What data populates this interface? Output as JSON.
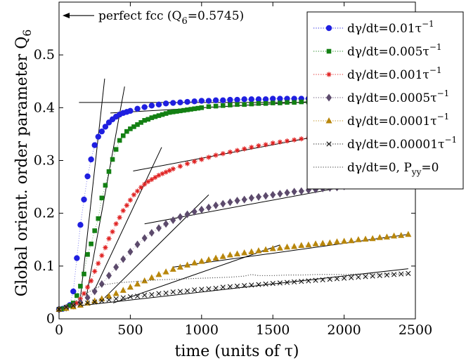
{
  "chart_data": {
    "type": "scatter",
    "xlabel": "time (units of τ)",
    "ylabel": "Global orient. order parameter Q",
    "ylabel_sub": "6",
    "xlim": [
      0,
      2500
    ],
    "ylim": [
      0,
      0.6
    ],
    "xticks": [
      0,
      500,
      1000,
      1500,
      2000,
      2500
    ],
    "yticks": [
      0,
      0.1,
      0.2,
      0.3,
      0.4,
      0.5
    ],
    "ytick_labels": [
      "0",
      "0.1",
      "0.2",
      "0.3",
      "0.4",
      "0.5"
    ],
    "grid": false,
    "legend_position": "top-right",
    "annotation": {
      "text": "perfect fcc (Q",
      "sub": "6",
      "suffix": "=0.5745)",
      "y": 0.5745
    },
    "series": [
      {
        "label_main": "dγ/dt=0.01τ",
        "label_sup": "−1",
        "label_sub": "",
        "color": "#1f1fe0",
        "marker": "circle",
        "x": [
          0,
          25,
          50,
          75,
          100,
          125,
          150,
          175,
          200,
          225,
          250,
          275,
          300,
          325,
          350,
          375,
          400,
          425,
          450,
          475,
          500,
          550,
          600,
          650,
          700,
          750,
          800,
          850,
          900,
          950,
          1000,
          1050,
          1100,
          1150,
          1200,
          1250,
          1300,
          1350,
          1400,
          1450,
          1500,
          1550,
          1600,
          1650,
          1700,
          1750,
          1800,
          1850,
          1900,
          1950,
          2000,
          2050,
          2100
        ],
        "y": [
          0.018,
          0.019,
          0.021,
          0.026,
          0.052,
          0.115,
          0.178,
          0.226,
          0.27,
          0.302,
          0.329,
          0.345,
          0.355,
          0.364,
          0.372,
          0.378,
          0.383,
          0.387,
          0.39,
          0.392,
          0.394,
          0.398,
          0.401,
          0.404,
          0.406,
          0.408,
          0.409,
          0.41,
          0.411,
          0.412,
          0.413,
          0.413,
          0.414,
          0.414,
          0.415,
          0.415,
          0.416,
          0.416,
          0.416,
          0.416,
          0.417,
          0.417,
          0.417,
          0.417,
          0.417,
          0.417,
          0.417,
          0.417,
          0.418,
          0.418,
          0.418,
          0.418,
          0.418
        ]
      },
      {
        "label_main": "dγ/dt=0.005τ",
        "label_sup": "−1",
        "label_sub": "",
        "color": "#138013",
        "marker": "square",
        "x": [
          0,
          25,
          50,
          75,
          100,
          125,
          150,
          175,
          200,
          225,
          250,
          275,
          300,
          325,
          350,
          375,
          400,
          425,
          450,
          475,
          500,
          525,
          550,
          575,
          600,
          625,
          650,
          675,
          700,
          725,
          750,
          775,
          800,
          825,
          850,
          875,
          900,
          925,
          950,
          975,
          1000,
          1050,
          1100,
          1150,
          1200,
          1250,
          1300,
          1350,
          1400,
          1450,
          1500,
          1550,
          1600,
          1650,
          1700,
          1750,
          1800,
          1850,
          1900
        ],
        "y": [
          0.018,
          0.019,
          0.021,
          0.025,
          0.03,
          0.044,
          0.062,
          0.085,
          0.122,
          0.142,
          0.167,
          0.19,
          0.229,
          0.253,
          0.279,
          0.302,
          0.321,
          0.338,
          0.347,
          0.355,
          0.36,
          0.364,
          0.368,
          0.372,
          0.376,
          0.378,
          0.381,
          0.383,
          0.385,
          0.387,
          0.389,
          0.391,
          0.392,
          0.393,
          0.394,
          0.395,
          0.396,
          0.397,
          0.398,
          0.399,
          0.4,
          0.402,
          0.403,
          0.404,
          0.405,
          0.406,
          0.406,
          0.407,
          0.408,
          0.408,
          0.409,
          0.409,
          0.41,
          0.41,
          0.411,
          0.411,
          0.412,
          0.412,
          0.413
        ]
      },
      {
        "label_main": "dγ/dt=0.001τ",
        "label_sup": "−1",
        "label_sub": "",
        "color": "#e02020",
        "marker": "star",
        "x": [
          0,
          50,
          100,
          125,
          150,
          175,
          200,
          225,
          250,
          275,
          300,
          325,
          350,
          375,
          400,
          425,
          450,
          475,
          500,
          525,
          550,
          575,
          600,
          625,
          650,
          675,
          700,
          725,
          750,
          775,
          800,
          850,
          900,
          950,
          1000,
          1050,
          1100,
          1150,
          1200,
          1250,
          1300,
          1350,
          1400,
          1450,
          1500,
          1550,
          1600,
          1650,
          1700,
          1750,
          1800,
          1850,
          1900
        ],
        "y": [
          0.018,
          0.02,
          0.024,
          0.03,
          0.038,
          0.048,
          0.06,
          0.072,
          0.09,
          0.105,
          0.12,
          0.135,
          0.152,
          0.165,
          0.18,
          0.192,
          0.205,
          0.215,
          0.225,
          0.235,
          0.242,
          0.249,
          0.255,
          0.26,
          0.264,
          0.268,
          0.272,
          0.275,
          0.278,
          0.281,
          0.284,
          0.289,
          0.294,
          0.298,
          0.302,
          0.306,
          0.31,
          0.313,
          0.316,
          0.319,
          0.322,
          0.325,
          0.328,
          0.33,
          0.333,
          0.335,
          0.337,
          0.339,
          0.341,
          0.343,
          0.345,
          0.347,
          0.349
        ]
      },
      {
        "label_main": "dγ/dt=0.0005τ",
        "label_sup": "−1",
        "label_sub": "",
        "color": "#5c4a6c",
        "marker": "diamond",
        "x": [
          0,
          50,
          100,
          150,
          200,
          250,
          300,
          350,
          400,
          450,
          500,
          550,
          600,
          650,
          700,
          750,
          800,
          850,
          900,
          950,
          1000,
          1050,
          1100,
          1150,
          1200,
          1250,
          1300,
          1350,
          1400,
          1450,
          1500,
          1550,
          1600,
          1650,
          1700,
          1750,
          1800,
          1850,
          1900,
          1950,
          2000
        ],
        "y": [
          0.018,
          0.021,
          0.025,
          0.031,
          0.04,
          0.052,
          0.066,
          0.082,
          0.098,
          0.113,
          0.127,
          0.141,
          0.153,
          0.163,
          0.172,
          0.18,
          0.187,
          0.193,
          0.198,
          0.203,
          0.207,
          0.211,
          0.215,
          0.218,
          0.221,
          0.224,
          0.226,
          0.229,
          0.231,
          0.233,
          0.235,
          0.237,
          0.239,
          0.241,
          0.242,
          0.244,
          0.245,
          0.247,
          0.248,
          0.249,
          0.251
        ]
      },
      {
        "label_main": "dγ/dt=0.0001τ",
        "label_sup": "−1",
        "label_sub": "",
        "color": "#b8860b",
        "marker": "triangle",
        "x": [
          0,
          50,
          100,
          150,
          200,
          250,
          300,
          350,
          400,
          450,
          500,
          550,
          600,
          650,
          700,
          750,
          800,
          850,
          900,
          950,
          1000,
          1050,
          1100,
          1150,
          1200,
          1250,
          1300,
          1350,
          1400,
          1450,
          1500,
          1550,
          1600,
          1650,
          1700,
          1750,
          1800,
          1850,
          1900,
          1950,
          2000,
          2050,
          2100,
          2150,
          2200,
          2250,
          2300,
          2350,
          2400,
          2450
        ],
        "y": [
          0.018,
          0.02,
          0.023,
          0.026,
          0.03,
          0.034,
          0.038,
          0.043,
          0.048,
          0.054,
          0.06,
          0.066,
          0.072,
          0.078,
          0.084,
          0.089,
          0.094,
          0.098,
          0.102,
          0.106,
          0.109,
          0.112,
          0.115,
          0.118,
          0.121,
          0.123,
          0.125,
          0.127,
          0.129,
          0.131,
          0.133,
          0.134,
          0.136,
          0.137,
          0.139,
          0.14,
          0.142,
          0.143,
          0.144,
          0.146,
          0.147,
          0.148,
          0.15,
          0.151,
          0.152,
          0.154,
          0.155,
          0.157,
          0.158,
          0.16
        ]
      },
      {
        "label_main": "dγ/dt=0.00001τ",
        "label_sup": "−1",
        "label_sub": "",
        "color": "#111111",
        "marker": "x",
        "x": [
          0,
          50,
          100,
          150,
          200,
          250,
          300,
          350,
          400,
          450,
          500,
          550,
          600,
          650,
          700,
          750,
          800,
          850,
          900,
          950,
          1000,
          1050,
          1100,
          1150,
          1200,
          1250,
          1300,
          1350,
          1400,
          1450,
          1500,
          1550,
          1600,
          1650,
          1700,
          1750,
          1800,
          1850,
          1900,
          1950,
          2000,
          2050,
          2100,
          2150,
          2200,
          2250,
          2300,
          2350,
          2400,
          2450
        ],
        "y": [
          0.018,
          0.022,
          0.025,
          0.028,
          0.03,
          0.032,
          0.034,
          0.036,
          0.038,
          0.04,
          0.042,
          0.043,
          0.045,
          0.046,
          0.048,
          0.049,
          0.051,
          0.052,
          0.053,
          0.055,
          0.056,
          0.057,
          0.058,
          0.06,
          0.061,
          0.062,
          0.063,
          0.064,
          0.065,
          0.066,
          0.067,
          0.068,
          0.069,
          0.07,
          0.071,
          0.072,
          0.073,
          0.074,
          0.075,
          0.076,
          0.077,
          0.078,
          0.079,
          0.08,
          0.081,
          0.082,
          0.083,
          0.084,
          0.085,
          0.086
        ]
      },
      {
        "label_main": "dγ/dt=0, P",
        "label_sup": "",
        "label_sub": "yy",
        "label_suffix": "=0",
        "color": "#111111",
        "marker": "dotted-line",
        "x": [
          0,
          100,
          200,
          300,
          400,
          500,
          600,
          700,
          800,
          900,
          1000,
          1100,
          1200,
          1300,
          1350,
          1400,
          1500,
          1600,
          1700,
          1800,
          1900,
          2000,
          2100,
          2200,
          2300,
          2400,
          2450
        ],
        "y": [
          0.018,
          0.03,
          0.05,
          0.064,
          0.068,
          0.07,
          0.072,
          0.074,
          0.075,
          0.076,
          0.077,
          0.078,
          0.079,
          0.081,
          0.084,
          0.082,
          0.082,
          0.083,
          0.083,
          0.084,
          0.084,
          0.084,
          0.085,
          0.085,
          0.085,
          0.085,
          0.085
        ]
      }
    ],
    "fit_lines": [
      {
        "x": [
          150,
          320
        ],
        "y": [
          0.04,
          0.455
        ]
      },
      {
        "x": [
          190,
          460
        ],
        "y": [
          0.04,
          0.44
        ]
      },
      {
        "x": [
          240,
          720
        ],
        "y": [
          0.05,
          0.325
        ]
      },
      {
        "x": [
          320,
          1050
        ],
        "y": [
          0.04,
          0.235
        ]
      },
      {
        "x": [
          380,
          1550
        ],
        "y": [
          0.03,
          0.14
        ]
      },
      {
        "x": [
          150,
          2450
        ],
        "y": [
          0.025,
          0.095
        ]
      },
      {
        "x": [
          140,
          1900
        ],
        "y": [
          0.41,
          0.41
        ]
      },
      {
        "x": [
          360,
          2000
        ],
        "y": [
          0.39,
          0.415
        ]
      },
      {
        "x": [
          520,
          1900
        ],
        "y": [
          0.28,
          0.35
        ]
      },
      {
        "x": [
          600,
          2100
        ],
        "y": [
          0.18,
          0.255
        ]
      },
      {
        "x": [
          800,
          2450
        ],
        "y": [
          0.098,
          0.16
        ]
      }
    ]
  }
}
